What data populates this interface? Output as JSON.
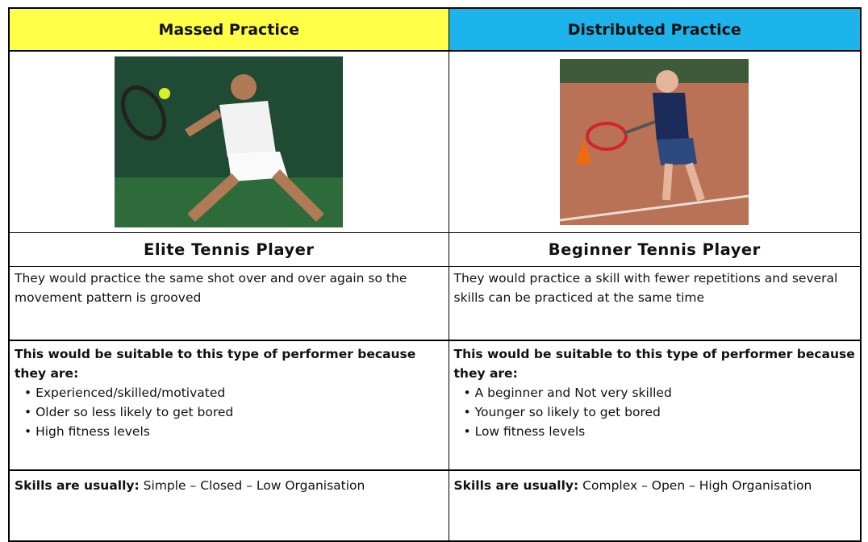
{
  "columns": [
    {
      "header": "Massed Practice",
      "performer": "Elite Tennis Player",
      "description": "They would practice the same shot over and over again so the movement pattern is grooved",
      "suitability_intro": "This would be suitable to this type of performer because they are:",
      "reasons": [
        "Experienced/skilled/motivated",
        "Older so less likely to get bored",
        "High fitness levels"
      ],
      "skills_label": "Skills are usually:",
      "skills": "Simple – Closed – Low Organisation"
    },
    {
      "header": "Distributed Practice",
      "performer": "Beginner Tennis Player",
      "description": "They would practice a skill with fewer repetitions and several skills can be practiced at the same time",
      "suitability_intro": "This would be suitable to this type of performer because they are:",
      "reasons": [
        "A beginner and Not very skilled",
        "Younger so likely to get bored",
        "Low fitness levels"
      ],
      "skills_label": "Skills are usually:",
      "skills": "Complex – Open – High Organisation"
    }
  ]
}
